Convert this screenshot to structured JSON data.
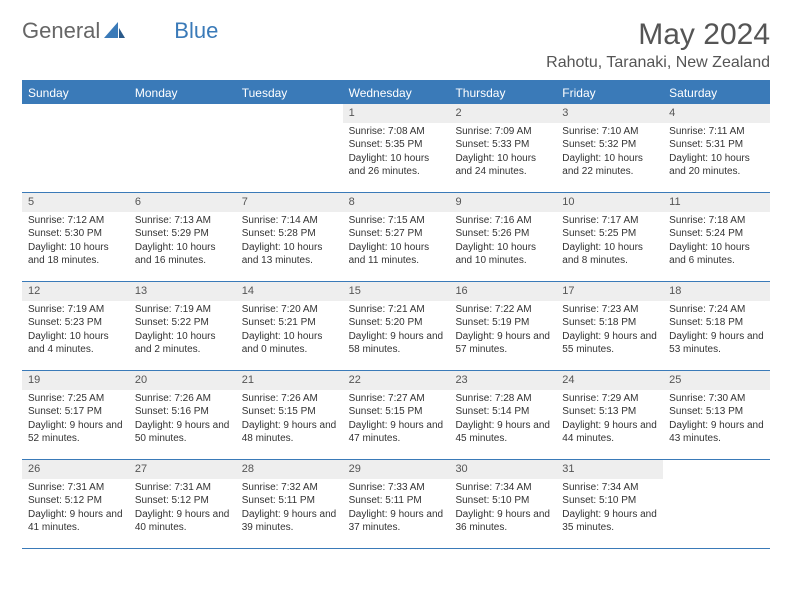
{
  "brand": {
    "part1": "General",
    "part2": "Blue"
  },
  "title": "May 2024",
  "location": "Rahotu, Taranaki, New Zealand",
  "colors": {
    "header_bg": "#3a7ab8",
    "header_text": "#ffffff",
    "daynum_bg": "#eeeeee",
    "text": "#333333",
    "title_text": "#555555",
    "border": "#3a7ab8"
  },
  "day_names": [
    "Sunday",
    "Monday",
    "Tuesday",
    "Wednesday",
    "Thursday",
    "Friday",
    "Saturday"
  ],
  "weeks": [
    [
      {
        "n": "",
        "sr": "",
        "ss": "",
        "dl": ""
      },
      {
        "n": "",
        "sr": "",
        "ss": "",
        "dl": ""
      },
      {
        "n": "",
        "sr": "",
        "ss": "",
        "dl": ""
      },
      {
        "n": "1",
        "sr": "Sunrise: 7:08 AM",
        "ss": "Sunset: 5:35 PM",
        "dl": "Daylight: 10 hours and 26 minutes."
      },
      {
        "n": "2",
        "sr": "Sunrise: 7:09 AM",
        "ss": "Sunset: 5:33 PM",
        "dl": "Daylight: 10 hours and 24 minutes."
      },
      {
        "n": "3",
        "sr": "Sunrise: 7:10 AM",
        "ss": "Sunset: 5:32 PM",
        "dl": "Daylight: 10 hours and 22 minutes."
      },
      {
        "n": "4",
        "sr": "Sunrise: 7:11 AM",
        "ss": "Sunset: 5:31 PM",
        "dl": "Daylight: 10 hours and 20 minutes."
      }
    ],
    [
      {
        "n": "5",
        "sr": "Sunrise: 7:12 AM",
        "ss": "Sunset: 5:30 PM",
        "dl": "Daylight: 10 hours and 18 minutes."
      },
      {
        "n": "6",
        "sr": "Sunrise: 7:13 AM",
        "ss": "Sunset: 5:29 PM",
        "dl": "Daylight: 10 hours and 16 minutes."
      },
      {
        "n": "7",
        "sr": "Sunrise: 7:14 AM",
        "ss": "Sunset: 5:28 PM",
        "dl": "Daylight: 10 hours and 13 minutes."
      },
      {
        "n": "8",
        "sr": "Sunrise: 7:15 AM",
        "ss": "Sunset: 5:27 PM",
        "dl": "Daylight: 10 hours and 11 minutes."
      },
      {
        "n": "9",
        "sr": "Sunrise: 7:16 AM",
        "ss": "Sunset: 5:26 PM",
        "dl": "Daylight: 10 hours and 10 minutes."
      },
      {
        "n": "10",
        "sr": "Sunrise: 7:17 AM",
        "ss": "Sunset: 5:25 PM",
        "dl": "Daylight: 10 hours and 8 minutes."
      },
      {
        "n": "11",
        "sr": "Sunrise: 7:18 AM",
        "ss": "Sunset: 5:24 PM",
        "dl": "Daylight: 10 hours and 6 minutes."
      }
    ],
    [
      {
        "n": "12",
        "sr": "Sunrise: 7:19 AM",
        "ss": "Sunset: 5:23 PM",
        "dl": "Daylight: 10 hours and 4 minutes."
      },
      {
        "n": "13",
        "sr": "Sunrise: 7:19 AM",
        "ss": "Sunset: 5:22 PM",
        "dl": "Daylight: 10 hours and 2 minutes."
      },
      {
        "n": "14",
        "sr": "Sunrise: 7:20 AM",
        "ss": "Sunset: 5:21 PM",
        "dl": "Daylight: 10 hours and 0 minutes."
      },
      {
        "n": "15",
        "sr": "Sunrise: 7:21 AM",
        "ss": "Sunset: 5:20 PM",
        "dl": "Daylight: 9 hours and 58 minutes."
      },
      {
        "n": "16",
        "sr": "Sunrise: 7:22 AM",
        "ss": "Sunset: 5:19 PM",
        "dl": "Daylight: 9 hours and 57 minutes."
      },
      {
        "n": "17",
        "sr": "Sunrise: 7:23 AM",
        "ss": "Sunset: 5:18 PM",
        "dl": "Daylight: 9 hours and 55 minutes."
      },
      {
        "n": "18",
        "sr": "Sunrise: 7:24 AM",
        "ss": "Sunset: 5:18 PM",
        "dl": "Daylight: 9 hours and 53 minutes."
      }
    ],
    [
      {
        "n": "19",
        "sr": "Sunrise: 7:25 AM",
        "ss": "Sunset: 5:17 PM",
        "dl": "Daylight: 9 hours and 52 minutes."
      },
      {
        "n": "20",
        "sr": "Sunrise: 7:26 AM",
        "ss": "Sunset: 5:16 PM",
        "dl": "Daylight: 9 hours and 50 minutes."
      },
      {
        "n": "21",
        "sr": "Sunrise: 7:26 AM",
        "ss": "Sunset: 5:15 PM",
        "dl": "Daylight: 9 hours and 48 minutes."
      },
      {
        "n": "22",
        "sr": "Sunrise: 7:27 AM",
        "ss": "Sunset: 5:15 PM",
        "dl": "Daylight: 9 hours and 47 minutes."
      },
      {
        "n": "23",
        "sr": "Sunrise: 7:28 AM",
        "ss": "Sunset: 5:14 PM",
        "dl": "Daylight: 9 hours and 45 minutes."
      },
      {
        "n": "24",
        "sr": "Sunrise: 7:29 AM",
        "ss": "Sunset: 5:13 PM",
        "dl": "Daylight: 9 hours and 44 minutes."
      },
      {
        "n": "25",
        "sr": "Sunrise: 7:30 AM",
        "ss": "Sunset: 5:13 PM",
        "dl": "Daylight: 9 hours and 43 minutes."
      }
    ],
    [
      {
        "n": "26",
        "sr": "Sunrise: 7:31 AM",
        "ss": "Sunset: 5:12 PM",
        "dl": "Daylight: 9 hours and 41 minutes."
      },
      {
        "n": "27",
        "sr": "Sunrise: 7:31 AM",
        "ss": "Sunset: 5:12 PM",
        "dl": "Daylight: 9 hours and 40 minutes."
      },
      {
        "n": "28",
        "sr": "Sunrise: 7:32 AM",
        "ss": "Sunset: 5:11 PM",
        "dl": "Daylight: 9 hours and 39 minutes."
      },
      {
        "n": "29",
        "sr": "Sunrise: 7:33 AM",
        "ss": "Sunset: 5:11 PM",
        "dl": "Daylight: 9 hours and 37 minutes."
      },
      {
        "n": "30",
        "sr": "Sunrise: 7:34 AM",
        "ss": "Sunset: 5:10 PM",
        "dl": "Daylight: 9 hours and 36 minutes."
      },
      {
        "n": "31",
        "sr": "Sunrise: 7:34 AM",
        "ss": "Sunset: 5:10 PM",
        "dl": "Daylight: 9 hours and 35 minutes."
      },
      {
        "n": "",
        "sr": "",
        "ss": "",
        "dl": ""
      }
    ]
  ]
}
